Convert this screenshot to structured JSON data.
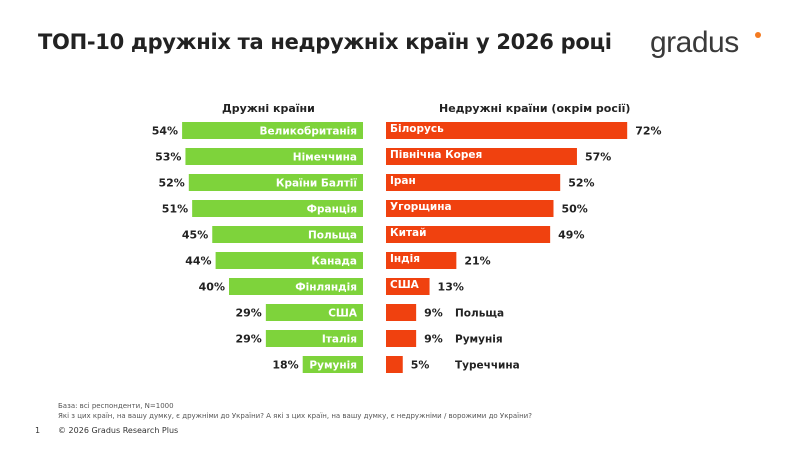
{
  "title": "ТОП-10 дружніх та недружніх країн у 2026 році",
  "logo": "gradus",
  "colors": {
    "friendly": "#7ed33b",
    "unfriendly": "#f0410f",
    "logo_dot": "#f47a20"
  },
  "chart_data": [
    {
      "type": "bar",
      "orientation": "horizontal",
      "title": "Дружні країни",
      "unit": "%",
      "categories": [
        "Великобританія",
        "Німеччина",
        "Країни Балтії",
        "Франція",
        "Польща",
        "Канада",
        "Фінляндія",
        "США",
        "Італія",
        "Румунія"
      ],
      "values": [
        54,
        53,
        52,
        51,
        45,
        44,
        40,
        29,
        29,
        18
      ]
    },
    {
      "type": "bar",
      "orientation": "horizontal",
      "title": "Недружні  країни (окрім росії)",
      "unit": "%",
      "categories": [
        "Білорусь",
        "Північна Корея",
        "Іран",
        "Угорщина",
        "Китай",
        "Індія",
        "США",
        "Польща",
        "Румунія",
        "Туреччина"
      ],
      "values": [
        72,
        57,
        52,
        50,
        49,
        21,
        13,
        9,
        9,
        5
      ]
    }
  ],
  "footnote": {
    "base": "База: всі респонденти, N=1000",
    "question": "Які з цих країн, на вашу думку, є дружніми до України? А які з цих країн, на вашу думку, є недружніми / ворожими до України?"
  },
  "page_number": "1",
  "copyright": "© 2026 Gradus Research Plus"
}
